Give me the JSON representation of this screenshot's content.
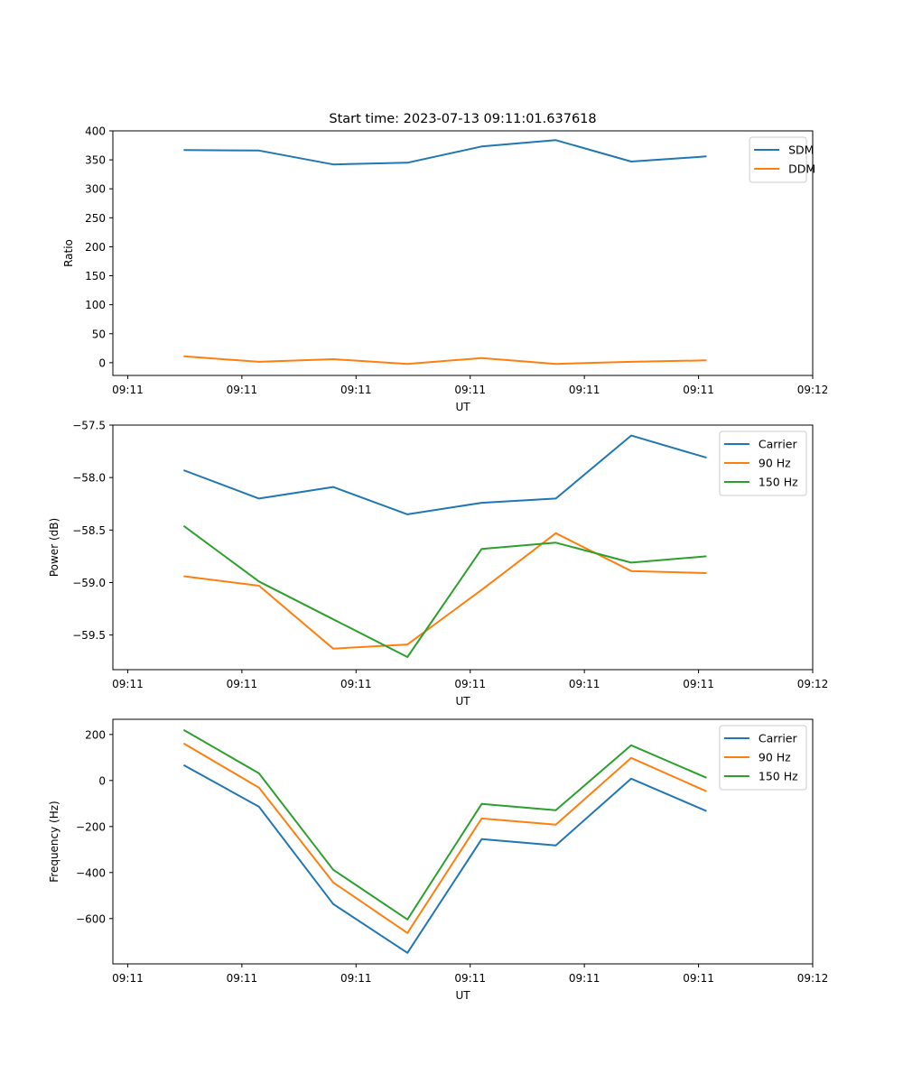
{
  "chart_data": [
    {
      "type": "line",
      "title": "Start time: 2023-07-13 09:11:01.637618",
      "xlabel": "UT",
      "ylabel": "Ratio",
      "x_tick_labels": [
        "09:11",
        "09:11",
        "09:11",
        "09:11",
        "09:11",
        "09:11",
        "09:12"
      ],
      "x": [
        0.49,
        1.15,
        1.8,
        2.45,
        3.1,
        3.75,
        4.41,
        5.07
      ],
      "xlim": [
        -0.13,
        6.0
      ],
      "ylim": [
        -22,
        400
      ],
      "y_ticks": [
        0,
        50,
        100,
        150,
        200,
        250,
        300,
        350,
        400
      ],
      "legend": "top-right",
      "series": [
        {
          "name": "SDM",
          "color": "#1f77b4",
          "values": [
            367,
            366,
            342,
            345,
            373,
            384,
            347,
            356
          ]
        },
        {
          "name": "DDM",
          "color": "#ff7f0e",
          "values": [
            11,
            1.5,
            6,
            -2,
            8,
            -2,
            1.5,
            4
          ]
        }
      ]
    },
    {
      "type": "line",
      "title": "",
      "xlabel": "UT",
      "ylabel": "Power (dB)",
      "x_tick_labels": [
        "09:11",
        "09:11",
        "09:11",
        "09:11",
        "09:11",
        "09:11",
        "09:12"
      ],
      "x": [
        0.49,
        1.15,
        1.8,
        2.45,
        3.1,
        3.75,
        4.41,
        5.07
      ],
      "xlim": [
        -0.13,
        6.0
      ],
      "ylim": [
        -59.83,
        -57.5
      ],
      "y_ticks": [
        -59.5,
        -59.0,
        -58.5,
        -58.0,
        -57.5
      ],
      "y_tick_labels": [
        "−59.5",
        "−59.0",
        "−58.5",
        "−58.0",
        "−57.5"
      ],
      "legend": "top-right",
      "series": [
        {
          "name": "Carrier",
          "color": "#1f77b4",
          "values": [
            -57.93,
            -58.2,
            -58.09,
            -58.35,
            -58.24,
            -58.2,
            -57.6,
            -57.81
          ]
        },
        {
          "name": "90 Hz",
          "color": "#ff7f0e",
          "values": [
            -58.94,
            -59.03,
            -59.63,
            -59.59,
            -59.07,
            -58.53,
            -58.89,
            -58.91
          ]
        },
        {
          "name": "150 Hz",
          "color": "#2ca02c",
          "values": [
            -58.46,
            -58.99,
            -59.35,
            -59.71,
            -58.68,
            -58.62,
            -58.81,
            -58.75
          ]
        }
      ]
    },
    {
      "type": "line",
      "title": "",
      "xlabel": "UT",
      "ylabel": "Frequency (Hz)",
      "x_tick_labels": [
        "09:11",
        "09:11",
        "09:11",
        "09:11",
        "09:11",
        "09:11",
        "09:12"
      ],
      "x": [
        0.49,
        1.15,
        1.8,
        2.45,
        3.1,
        3.75,
        4.41,
        5.07
      ],
      "xlim": [
        -0.13,
        6.0
      ],
      "ylim": [
        -797,
        266
      ],
      "y_ticks": [
        -600,
        -400,
        -200,
        0,
        200
      ],
      "y_tick_labels": [
        "−600",
        "−400",
        "−200",
        "0",
        "200"
      ],
      "legend": "top-right",
      "series": [
        {
          "name": "Carrier",
          "color": "#1f77b4",
          "values": [
            67,
            -114,
            -537,
            -749,
            -255,
            -282,
            8,
            -133
          ]
        },
        {
          "name": "90 Hz",
          "color": "#ff7f0e",
          "values": [
            161,
            -31,
            -443,
            -663,
            -165,
            -192,
            98,
            -47
          ]
        },
        {
          "name": "150 Hz",
          "color": "#2ca02c",
          "values": [
            220,
            31,
            -388,
            -604,
            -102,
            -129,
            153,
            12
          ]
        }
      ]
    }
  ]
}
